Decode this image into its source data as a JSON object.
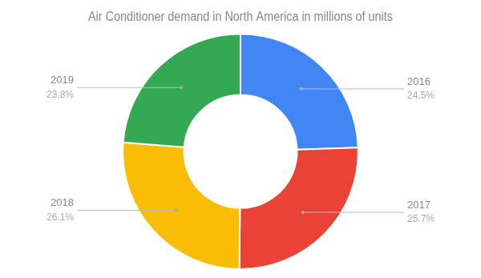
{
  "chart_data": {
    "type": "donut",
    "title": "Air Conditioner demand in North America in millions of units",
    "categories": [
      "2016",
      "2017",
      "2018",
      "2019"
    ],
    "values": [
      24.5,
      25.7,
      26.1,
      23.8
    ],
    "value_labels": [
      "24.5%",
      "25.7%",
      "26.1%",
      "23.8%"
    ],
    "colors": [
      "#4285F4",
      "#EA4335",
      "#FBBC05",
      "#34A853"
    ],
    "data_labels": true
  }
}
